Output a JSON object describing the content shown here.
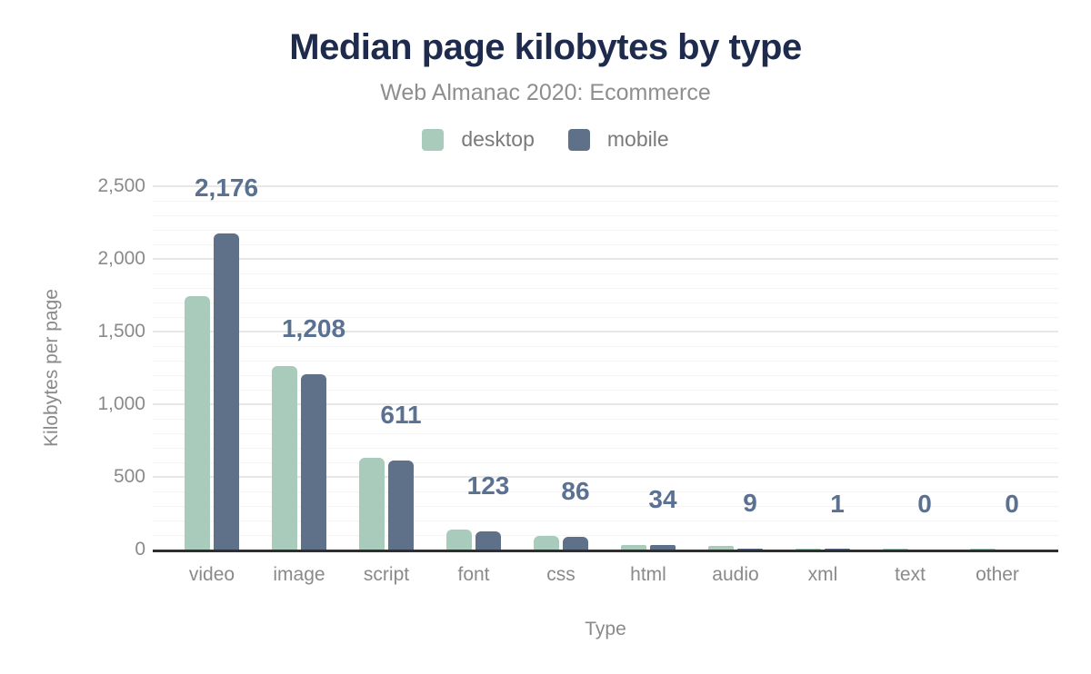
{
  "header": {
    "title": "Median page kilobytes by type",
    "subtitle": "Web Almanac 2020: Ecommerce"
  },
  "colors": {
    "title": "#1e2b4d",
    "subtitle": "#8e8e8e",
    "axis_text": "#8a8a8a",
    "axis_line": "#2f2f2f",
    "desktop": "#a9cbbc",
    "mobile": "#5f7189",
    "data_label": "#5a7191",
    "grid_major": "#e7e7e7",
    "grid_minor": "#f4f4f4"
  },
  "chart_data": {
    "type": "bar",
    "title": "Median page kilobytes by type",
    "subtitle": "Web Almanac 2020: Ecommerce",
    "categories": [
      "video",
      "image",
      "script",
      "font",
      "css",
      "html",
      "audio",
      "xml",
      "text",
      "other"
    ],
    "series": [
      {
        "name": "desktop",
        "color": "#a9cbbc",
        "values": [
          1744,
          1262,
          629,
          140,
          96,
          33,
          22,
          2,
          1,
          1
        ],
        "estimated": true
      },
      {
        "name": "mobile",
        "color": "#5f7189",
        "values": [
          2176,
          1208,
          611,
          123,
          86,
          34,
          9,
          1,
          0,
          0
        ],
        "estimated": false
      }
    ],
    "data_labels": {
      "series": "mobile",
      "values": [
        "2,176",
        "1,208",
        "611",
        "123",
        "86",
        "34",
        "9",
        "1",
        "0",
        "0"
      ],
      "color": "#5a7191"
    },
    "xlabel": "Type",
    "ylabel": "Kilobytes per page",
    "ylim": [
      0,
      2500
    ],
    "yticks": [
      0,
      500,
      1000,
      1500,
      2000,
      2500
    ],
    "ytick_labels": [
      "0",
      "500",
      "1,000",
      "1,500",
      "2,000",
      "2,500"
    ],
    "grid": {
      "on": true,
      "major_step": 500,
      "minor_step": 100
    },
    "legend_position": "top"
  }
}
